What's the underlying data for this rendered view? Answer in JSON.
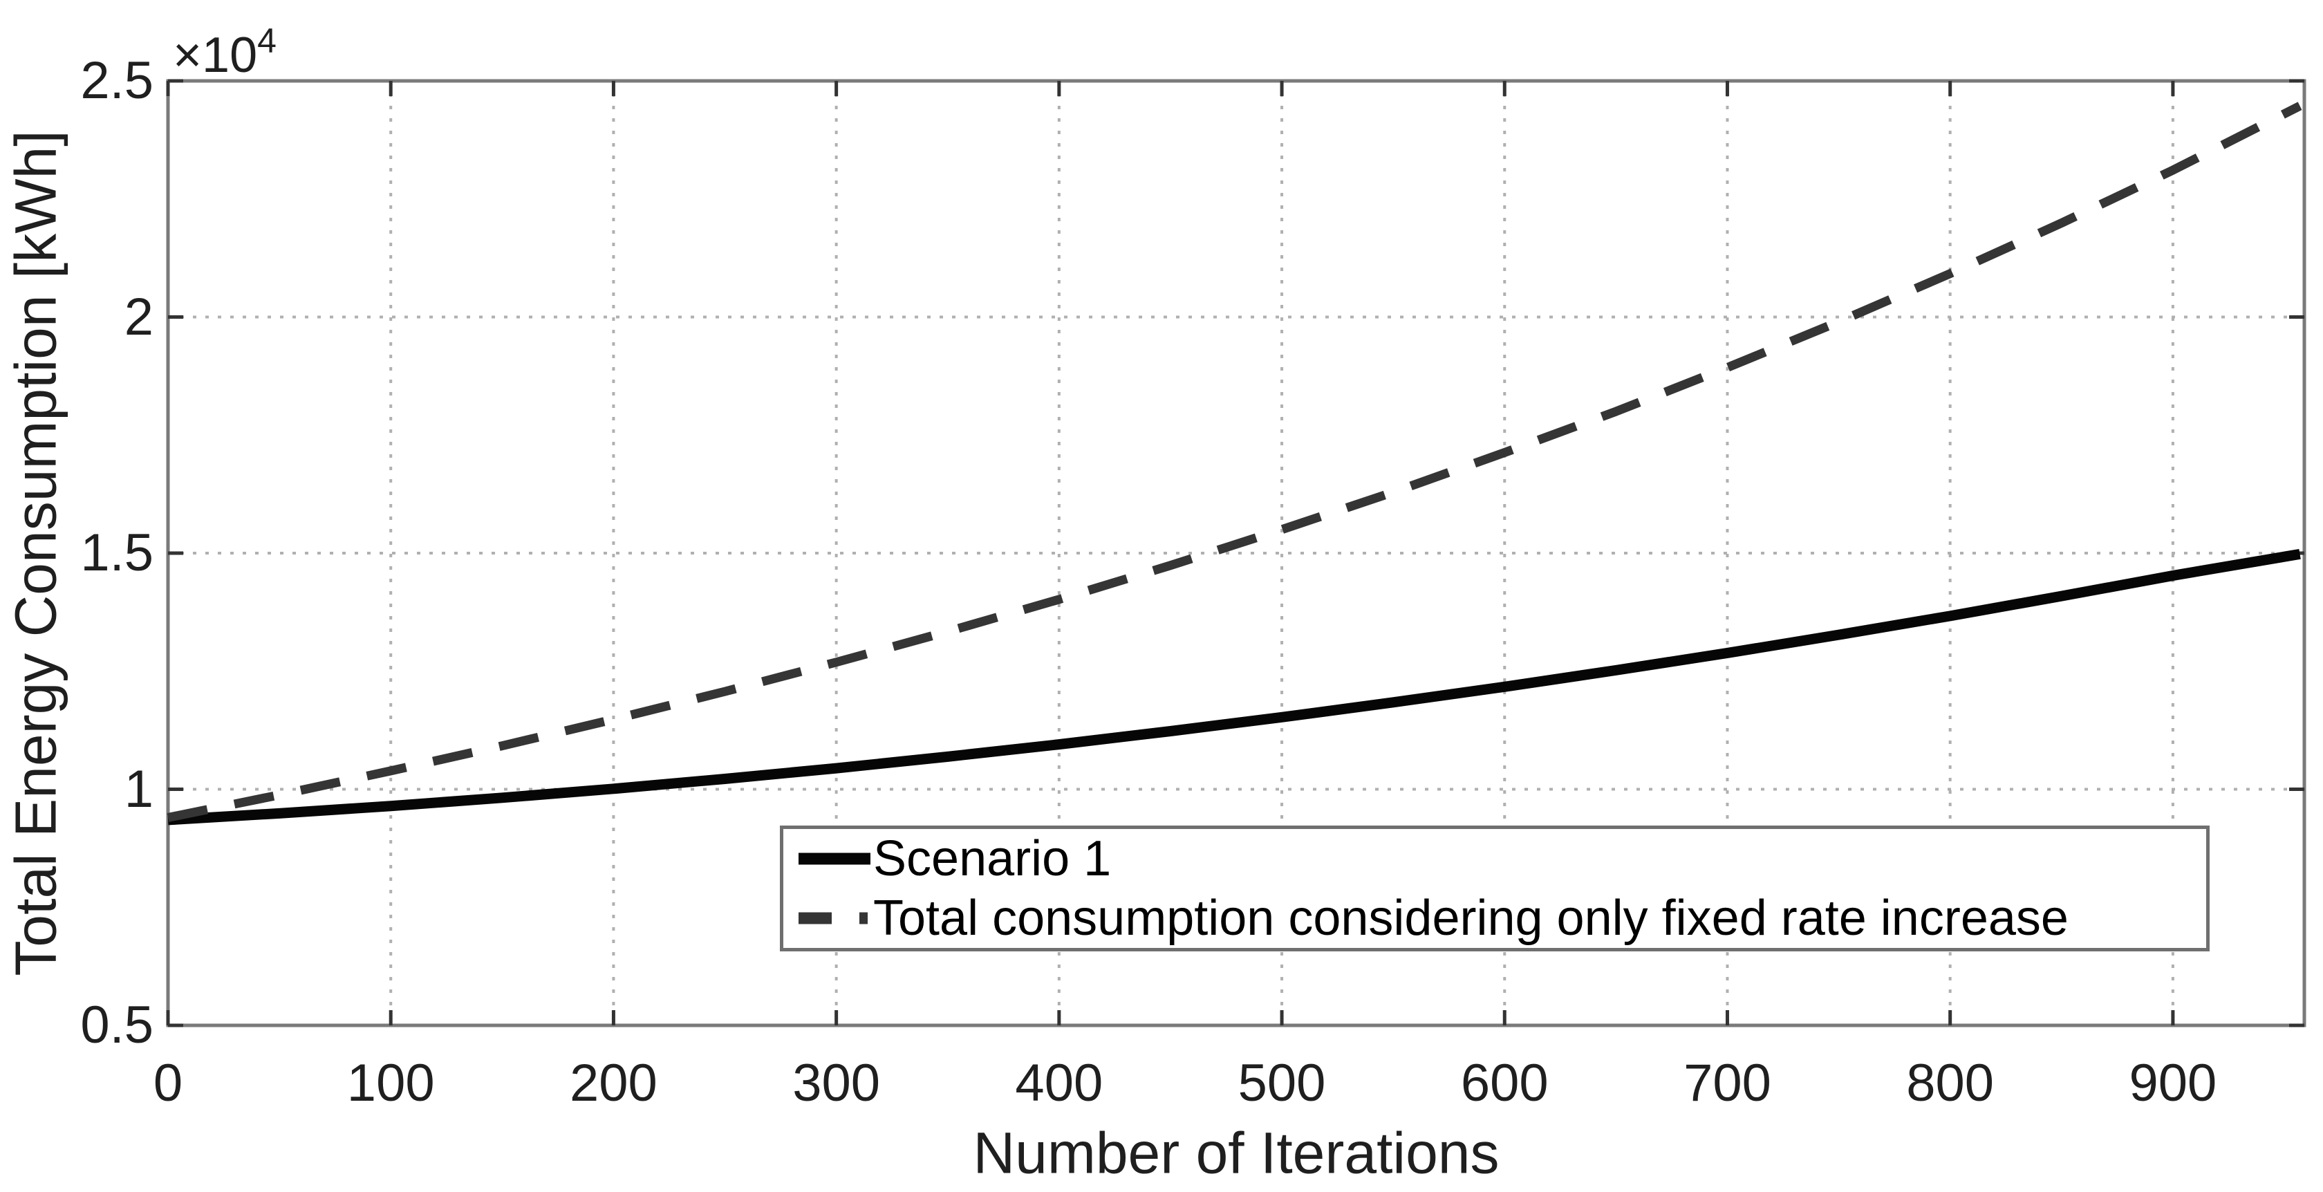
{
  "figure": {
    "background": "#ffffff",
    "axis_box_color": "#7a7a7a",
    "tick_mark_color": "#333333",
    "grid_color": "#b0b0b0",
    "text_color": "#1f1f1f",
    "exponent_base": "×10",
    "exponent_power": "4"
  },
  "chart_data": {
    "type": "line",
    "title": "",
    "xlabel": "Number of Iterations",
    "ylabel": "Total Energy Consumption [kWh]",
    "xlim": [
      0,
      959
    ],
    "ylim": [
      5000,
      25000
    ],
    "x_ticks": [
      0,
      100,
      200,
      300,
      400,
      500,
      600,
      700,
      800,
      900
    ],
    "x_tick_labels": [
      "0",
      "100",
      "200",
      "300",
      "400",
      "500",
      "600",
      "700",
      "800",
      "900"
    ],
    "y_ticks": [
      5000,
      10000,
      15000,
      20000,
      25000
    ],
    "y_tick_labels": [
      "0.5",
      "1",
      "1.5",
      "2",
      "2.5"
    ],
    "y_axis_multiplier": "×10^4",
    "grid": true,
    "grid_style": "dotted",
    "legend_position": "inside-bottom-center",
    "series": [
      {
        "name": "Scenario 1",
        "style": "solid",
        "color": "#060606",
        "stroke_width": 15,
        "x": [
          0,
          50,
          100,
          150,
          200,
          250,
          300,
          350,
          400,
          450,
          500,
          550,
          600,
          650,
          700,
          750,
          800,
          850,
          900,
          957
        ],
        "y": [
          9350,
          9490,
          9645,
          9820,
          10010,
          10220,
          10445,
          10690,
          10950,
          11230,
          11525,
          11840,
          12170,
          12520,
          12885,
          13270,
          13670,
          14090,
          14525,
          14980
        ]
      },
      {
        "name": "Total consumption considering only fixed rate increase",
        "style": "dashed",
        "color": "#353535",
        "stroke_width": 13,
        "x": [
          0,
          50,
          100,
          150,
          200,
          250,
          300,
          350,
          400,
          450,
          500,
          550,
          600,
          650,
          700,
          750,
          800,
          850,
          900,
          957
        ],
        "y": [
          9400,
          9880,
          10390,
          10920,
          11480,
          12070,
          12690,
          13340,
          14020,
          14740,
          15500,
          16290,
          17130,
          18000,
          18930,
          19900,
          20920,
          21990,
          23110,
          24470
        ]
      }
    ]
  }
}
